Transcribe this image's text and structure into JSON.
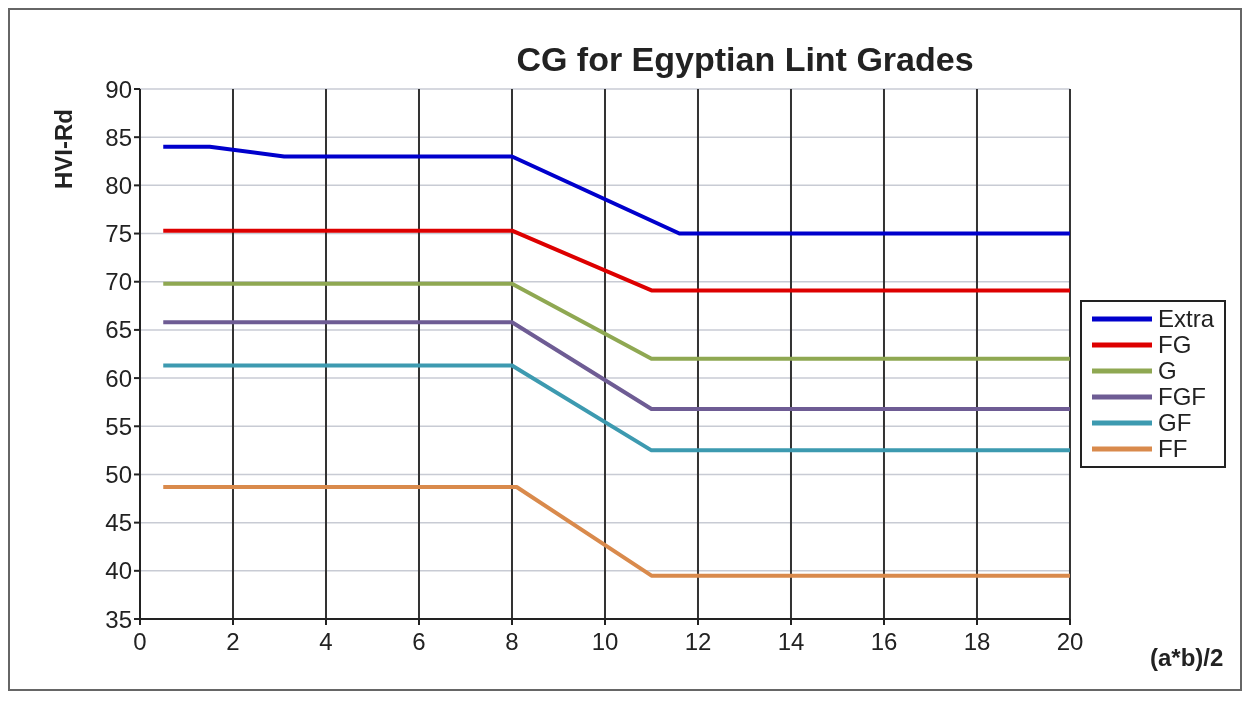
{
  "chart_data": {
    "type": "line",
    "title": "CG for Egyptian Lint Grades",
    "xlabel": "(a*b)/2",
    "ylabel": "HVI-Rd",
    "xlim": [
      0,
      20
    ],
    "xticks": [
      0,
      2,
      4,
      6,
      8,
      10,
      12,
      14,
      16,
      18,
      20
    ],
    "ylim": [
      35,
      90
    ],
    "yticks": [
      35,
      40,
      45,
      50,
      55,
      60,
      65,
      70,
      75,
      80,
      85,
      90
    ],
    "grid": true,
    "legend": "right",
    "marker": "none",
    "line_style": "solid",
    "series": [
      {
        "name": "Extra",
        "color": "#0000cc",
        "x": [
          0.5,
          1.5,
          3.1,
          8,
          11.6,
          20
        ],
        "values": [
          84,
          84,
          83,
          83,
          75,
          75
        ]
      },
      {
        "name": "FG",
        "color": "#dd0000",
        "x": [
          0.5,
          8,
          11,
          20
        ],
        "values": [
          75.3,
          75.3,
          69.1,
          69.1
        ]
      },
      {
        "name": "G",
        "color": "#8fa852",
        "x": [
          0.5,
          8,
          11,
          20
        ],
        "values": [
          69.8,
          69.8,
          62,
          62
        ]
      },
      {
        "name": "FGF",
        "color": "#6e5c94",
        "x": [
          0.5,
          8,
          11,
          20
        ],
        "values": [
          65.8,
          65.8,
          56.8,
          56.8
        ]
      },
      {
        "name": "GF",
        "color": "#3d9ab0",
        "x": [
          0.5,
          8,
          11,
          20
        ],
        "values": [
          61.3,
          61.3,
          52.5,
          52.5
        ]
      },
      {
        "name": "FF",
        "color": "#d98a4c",
        "x": [
          0.5,
          8.1,
          11,
          20
        ],
        "values": [
          48.7,
          48.7,
          39.5,
          39.5
        ]
      }
    ]
  }
}
